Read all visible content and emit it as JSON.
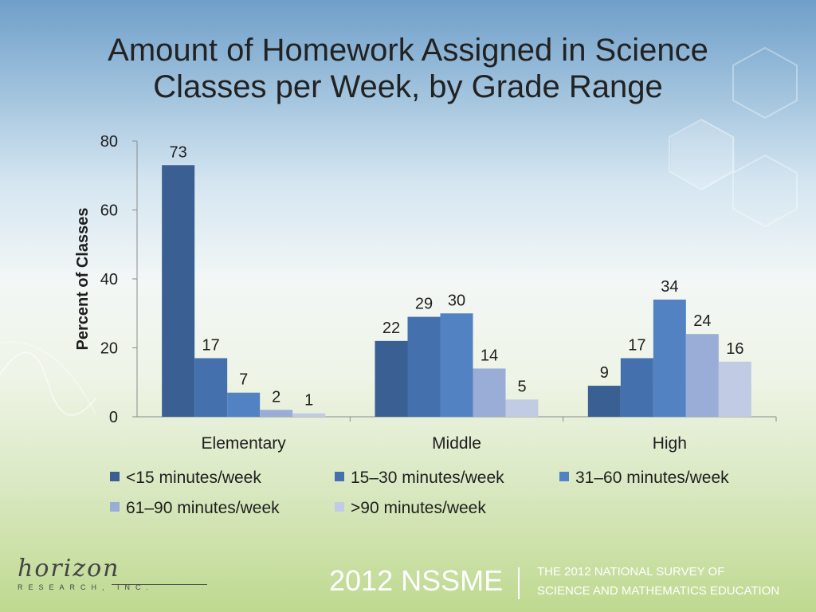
{
  "colors": {
    "series": [
      "#395f93",
      "#4470ae",
      "#5282c2",
      "#99add6",
      "#c1cce4"
    ],
    "axis": "#8a8a8a",
    "text": "#1e1e1e"
  },
  "chart_data": {
    "type": "bar",
    "title": "Amount of Homework Assigned in Science Classes per Week, by Grade Range",
    "ylabel": "Percent of Classes",
    "xlabel": "",
    "ylim": [
      0,
      80
    ],
    "yticks": [
      0,
      20,
      40,
      60,
      80
    ],
    "categories": [
      "Elementary",
      "Middle",
      "High"
    ],
    "series": [
      {
        "name": "<15 minutes/week",
        "values": [
          73,
          22,
          9
        ]
      },
      {
        "name": "15–30 minutes/week",
        "values": [
          17,
          29,
          17
        ]
      },
      {
        "name": "31–60 minutes/week",
        "values": [
          7,
          30,
          34
        ]
      },
      {
        "name": "61–90 minutes/week",
        "values": [
          2,
          14,
          24
        ]
      },
      {
        "name": ">90 minutes/week",
        "values": [
          1,
          5,
          16
        ]
      }
    ],
    "legend": "bottom",
    "grid": false
  },
  "title_line1": "Amount of Homework Assigned in Science",
  "title_line2": "Classes per Week, by Grade Range",
  "logo": {
    "word": "horizon",
    "sub": "RESEARCH, INC."
  },
  "footer": {
    "label": "2012 NSSME",
    "line1": "THE 2012 NATIONAL SURVEY OF",
    "line2": "SCIENCE AND MATHEMATICS EDUCATION"
  }
}
